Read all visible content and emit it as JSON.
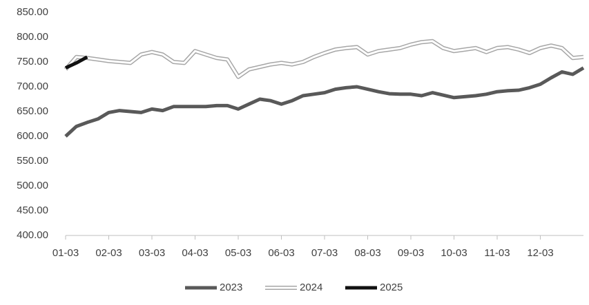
{
  "chart_data": {
    "type": "line",
    "categories": [
      "01-03",
      null,
      null,
      null,
      "02-03",
      null,
      null,
      null,
      "03-03",
      null,
      null,
      null,
      "04-03",
      null,
      null,
      null,
      "05-03",
      null,
      null,
      null,
      "06-03",
      null,
      null,
      null,
      "07-03",
      null,
      null,
      null,
      "08-03",
      null,
      null,
      null,
      "09-03",
      null,
      null,
      null,
      "10-03",
      null,
      null,
      null,
      "11-03",
      null,
      null,
      null,
      "12-03",
      null,
      null,
      null,
      null
    ],
    "series": [
      {
        "name": "2023",
        "color": "#595959",
        "values": [
          600,
          620,
          628,
          635,
          648,
          652,
          650,
          648,
          655,
          652,
          660,
          660,
          660,
          660,
          662,
          662,
          655,
          665,
          675,
          672,
          665,
          672,
          682,
          685,
          688,
          695,
          698,
          700,
          695,
          690,
          686,
          685,
          685,
          682,
          688,
          683,
          678,
          680,
          682,
          685,
          690,
          692,
          693,
          698,
          705,
          718,
          730,
          725,
          738
        ]
      },
      {
        "name": "2024",
        "color": "#a6a6a6",
        "line_style": "double",
        "values": [
          735,
          760,
          758,
          755,
          752,
          750,
          748,
          765,
          770,
          765,
          750,
          748,
          772,
          765,
          758,
          755,
          720,
          735,
          740,
          745,
          748,
          745,
          750,
          760,
          768,
          775,
          778,
          780,
          765,
          772,
          775,
          778,
          785,
          790,
          792,
          778,
          772,
          775,
          778,
          770,
          778,
          780,
          775,
          768,
          778,
          783,
          778,
          758,
          760
        ]
      },
      {
        "name": "2025",
        "color": "#111111",
        "values": [
          738,
          748,
          760,
          null,
          null,
          null,
          null,
          null,
          null,
          null,
          null,
          null,
          null,
          null,
          null,
          null,
          null,
          null,
          null,
          null,
          null,
          null,
          null,
          null,
          null,
          null,
          null,
          null,
          null,
          null,
          null,
          null,
          null,
          null,
          null,
          null,
          null,
          null,
          null,
          null,
          null,
          null,
          null,
          null,
          null,
          null,
          null,
          null,
          null
        ]
      }
    ],
    "ylim": [
      400,
      850
    ],
    "yticks": [
      {
        "value": 400,
        "label": "400.00"
      },
      {
        "value": 450,
        "label": "450.00"
      },
      {
        "value": 500,
        "label": "500.00"
      },
      {
        "value": 550,
        "label": "550.00"
      },
      {
        "value": 600,
        "label": "600.00"
      },
      {
        "value": 650,
        "label": "650.00"
      },
      {
        "value": 700,
        "label": "700.00"
      },
      {
        "value": 750,
        "label": "750.00"
      },
      {
        "value": 800,
        "label": "800.00"
      },
      {
        "value": 850,
        "label": "850.00"
      }
    ],
    "grid": false,
    "legend": "bottom"
  }
}
